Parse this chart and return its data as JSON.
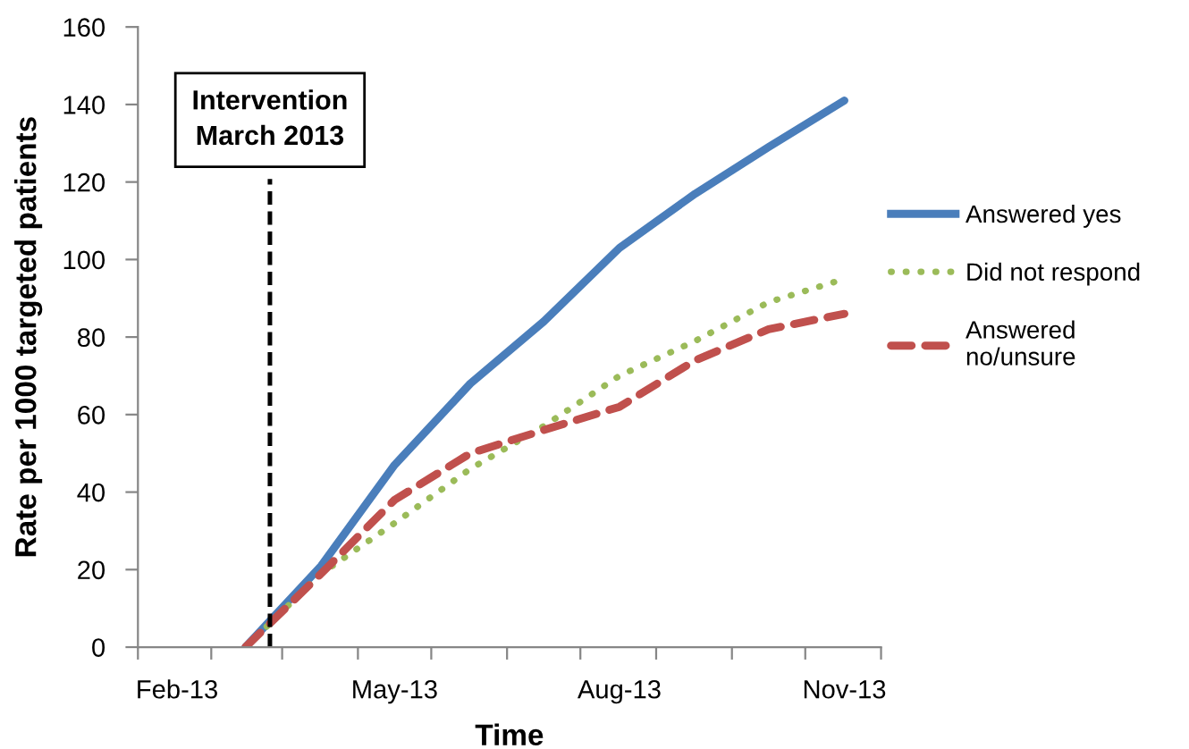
{
  "chart_data": {
    "type": "line",
    "xlabel": "Time",
    "ylabel": "Rate per 1000 targeted patients",
    "x": [
      "2013-03-01",
      "2013-04-01",
      "2013-05-01",
      "2013-06-01",
      "2013-07-01",
      "2013-08-01",
      "2013-09-01",
      "2013-10-01",
      "2013-11-01"
    ],
    "series": [
      {
        "name": "Answered yes",
        "color": "#4a7ebb",
        "line_style": "solid",
        "values": [
          0,
          21,
          47,
          68,
          84,
          103,
          117,
          129,
          141
        ]
      },
      {
        "name": "Did not respond",
        "color": "#9bbb59",
        "line_style": "dotted",
        "values": [
          0,
          19,
          32,
          46,
          57,
          70,
          79,
          89,
          95
        ]
      },
      {
        "name": "Answered no/unsure",
        "color": "#c0504d",
        "line_style": "dashed",
        "values": [
          0,
          19,
          38,
          50,
          56,
          62,
          74,
          82,
          86
        ]
      }
    ],
    "xlim": [
      "2013-01-16",
      "2013-11-16"
    ],
    "xticks": [
      {
        "value": "2013-01-16",
        "label": null
      },
      {
        "value": "2013-02-01",
        "label": "Feb-13"
      },
      {
        "value": "2013-02-15",
        "label": null
      },
      {
        "value": "2013-03-16",
        "label": null
      },
      {
        "value": "2013-04-16",
        "label": null
      },
      {
        "value": "2013-05-01",
        "label": "May-13"
      },
      {
        "value": "2013-05-16",
        "label": null
      },
      {
        "value": "2013-06-16",
        "label": null
      },
      {
        "value": "2013-07-16",
        "label": null
      },
      {
        "value": "2013-08-01",
        "label": "Aug-13"
      },
      {
        "value": "2013-08-16",
        "label": null
      },
      {
        "value": "2013-09-16",
        "label": null
      },
      {
        "value": "2013-10-16",
        "label": null
      },
      {
        "value": "2013-11-01",
        "label": "Nov-13"
      },
      {
        "value": "2013-11-16",
        "label": null
      }
    ],
    "ylim": [
      0,
      160
    ],
    "yticks": [
      0,
      20,
      40,
      60,
      80,
      100,
      120,
      140,
      160
    ],
    "ref_lines": [
      {
        "axis": "x",
        "value": "2013-03-11",
        "label": "Intervention\nMarch 2013",
        "color": "#000000",
        "line_style": "dashed"
      }
    ],
    "grid": false,
    "legend": "right",
    "marker": "none"
  }
}
